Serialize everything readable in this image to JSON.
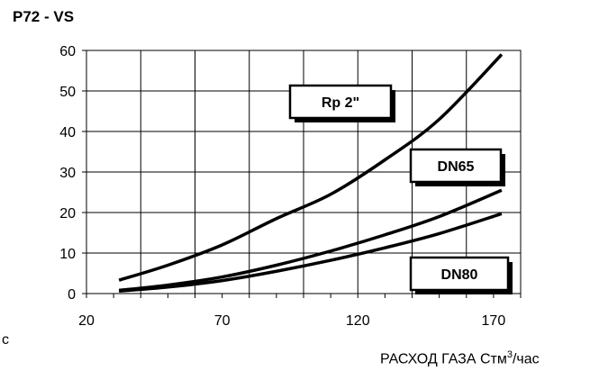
{
  "chart_data": {
    "type": "line",
    "title": "P72 - VS",
    "xlabel_pre": "РАСХОД ГАЗА Стм",
    "xlabel_sup": "3",
    "xlabel_post": "/час",
    "ylabel": "",
    "xlim": [
      20,
      180
    ],
    "ylim": [
      0,
      60
    ],
    "x_ticks": [
      20,
      70,
      120,
      170
    ],
    "y_ticks": [
      0,
      10,
      20,
      30,
      40,
      50,
      60
    ],
    "grid": true,
    "series": [
      {
        "name": "Rp 2\"",
        "x": [
          32,
          50,
          70,
          90,
          110,
          130,
          150,
          173
        ],
        "y": [
          3.3,
          7,
          12,
          18.5,
          24.5,
          33,
          43,
          59
        ]
      },
      {
        "name": "DN65",
        "x": [
          32,
          50,
          70,
          90,
          110,
          130,
          150,
          173
        ],
        "y": [
          0.8,
          2.1,
          4.1,
          7,
          10.5,
          14.5,
          19,
          25.5
        ]
      },
      {
        "name": "DN80",
        "x": [
          32,
          50,
          70,
          90,
          110,
          130,
          150,
          173
        ],
        "y": [
          0.6,
          1.6,
          3.2,
          5.5,
          8.2,
          11.3,
          14.8,
          19.7
        ]
      }
    ]
  },
  "stray_text": "с"
}
